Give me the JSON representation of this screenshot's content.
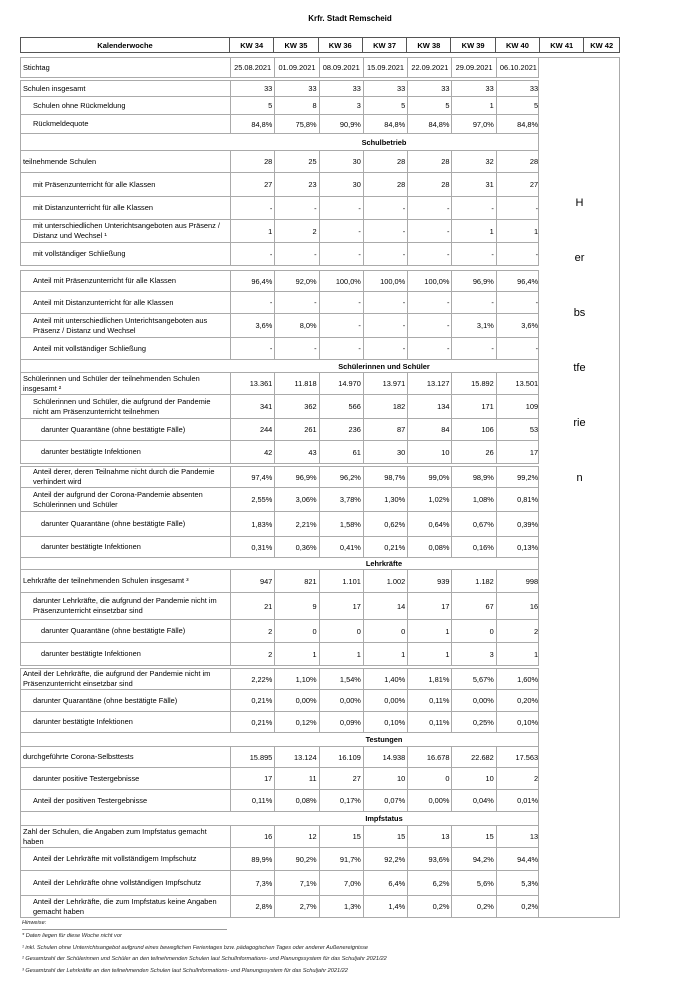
{
  "title": "Krfr. Stadt Remscheid",
  "header": {
    "label": "Kalenderwoche",
    "weeks": [
      "KW 34",
      "KW 35",
      "KW 36",
      "KW 37",
      "KW 38",
      "KW 39",
      "KW 40",
      "KW 41",
      "KW 42"
    ]
  },
  "holiday_text": "Herbstferien",
  "rows": [
    {
      "label": "Stichtag",
      "indent": 0,
      "values": [
        "25.08.2021",
        "01.09.2021",
        "08.09.2021",
        "15.09.2021",
        "22.09.2021",
        "29.09.2021",
        "06.10.2021"
      ]
    },
    {
      "label": "Schulen insgesamt",
      "indent": 0,
      "values": [
        "33",
        "33",
        "33",
        "33",
        "33",
        "33",
        "33"
      ]
    },
    {
      "label": "Schulen ohne Rückmeldung",
      "indent": 1,
      "values": [
        "5",
        "8",
        "3",
        "5",
        "5",
        "1",
        "5"
      ]
    },
    {
      "label": "Rückmeldequote",
      "indent": 1,
      "values": [
        "84,8%",
        "75,8%",
        "90,9%",
        "84,8%",
        "84,8%",
        "97,0%",
        "84,8%"
      ]
    },
    {
      "heading": "Schulbetrieb"
    },
    {
      "label": "teilnehmende Schulen",
      "indent": 0,
      "values": [
        "28",
        "25",
        "30",
        "28",
        "28",
        "32",
        "28"
      ]
    },
    {
      "label": "mit Präsenzunterricht für alle Klassen",
      "indent": 1,
      "values": [
        "27",
        "23",
        "30",
        "28",
        "28",
        "31",
        "27"
      ]
    },
    {
      "label": "mit Distanzunterricht für alle Klassen",
      "indent": 1,
      "values": [
        "-",
        "-",
        "-",
        "-",
        "-",
        "-",
        "-"
      ]
    },
    {
      "label": "mit unterschiedlichen Unterichtsangeboten aus Präsenz / Distanz und Wechsel ¹",
      "indent": 1,
      "values": [
        "1",
        "2",
        "-",
        "-",
        "-",
        "1",
        "1"
      ]
    },
    {
      "label": "mit vollständiger Schließung",
      "indent": 1,
      "values": [
        "-",
        "-",
        "-",
        "-",
        "-",
        "-",
        "-"
      ]
    },
    {
      "label": "Anteil mit Präsenzunterricht für alle Klassen",
      "indent": 1,
      "values": [
        "96,4%",
        "92,0%",
        "100,0%",
        "100,0%",
        "100,0%",
        "96,9%",
        "96,4%"
      ]
    },
    {
      "label": "Anteil mit Distanzunterricht für alle Klassen",
      "indent": 1,
      "values": [
        "-",
        "-",
        "-",
        "-",
        "-",
        "-",
        "-"
      ]
    },
    {
      "label": "Anteil mit unterschiedlichen Unterichtsangeboten aus Präsenz / Distanz und Wechsel",
      "indent": 1,
      "values": [
        "3,6%",
        "8,0%",
        "-",
        "-",
        "-",
        "3,1%",
        "3,6%"
      ]
    },
    {
      "label": "Anteil mit vollständiger Schließung",
      "indent": 1,
      "values": [
        "-",
        "-",
        "-",
        "-",
        "-",
        "-",
        "-"
      ]
    },
    {
      "heading": "Schülerinnen und Schüler"
    },
    {
      "label": "Schülerinnen und Schüler der teilnehmenden Schulen insgesamt ²",
      "indent": 0,
      "values": [
        "13.361",
        "11.818",
        "14.970",
        "13.971",
        "13.127",
        "15.892",
        "13.501"
      ]
    },
    {
      "label": "Schülerinnen und Schüler, die aufgrund der Pandemie nicht am Präsenzunterricht teilnehmen",
      "indent": 1,
      "values": [
        "341",
        "362",
        "566",
        "182",
        "134",
        "171",
        "109"
      ]
    },
    {
      "label": "darunter Quarantäne (ohne bestätigte Fälle)",
      "indent": 2,
      "values": [
        "244",
        "261",
        "236",
        "87",
        "84",
        "106",
        "53"
      ]
    },
    {
      "label": "darunter bestätigte Infektionen",
      "indent": 2,
      "values": [
        "42",
        "43",
        "61",
        "30",
        "10",
        "26",
        "17"
      ]
    },
    {
      "label": "Anteil derer, deren Teilnahme nicht durch die Pandemie verhindert wird",
      "indent": 1,
      "values": [
        "97,4%",
        "96,9%",
        "96,2%",
        "98,7%",
        "99,0%",
        "98,9%",
        "99,2%"
      ]
    },
    {
      "label": "Anteil der aufgrund der Corona-Pandemie absenten Schülerinnen und Schüler",
      "indent": 1,
      "values": [
        "2,55%",
        "3,06%",
        "3,78%",
        "1,30%",
        "1,02%",
        "1,08%",
        "0,81%"
      ]
    },
    {
      "label": "darunter Quarantäne (ohne bestätigte Fälle)",
      "indent": 2,
      "values": [
        "1,83%",
        "2,21%",
        "1,58%",
        "0,62%",
        "0,64%",
        "0,67%",
        "0,39%"
      ]
    },
    {
      "label": "darunter bestätigte Infektionen",
      "indent": 2,
      "values": [
        "0,31%",
        "0,36%",
        "0,41%",
        "0,21%",
        "0,08%",
        "0,16%",
        "0,13%"
      ]
    },
    {
      "heading": "Lehrkräfte"
    },
    {
      "label": "Lehrkräfte der teilnehmenden Schulen insgesamt ³",
      "indent": 0,
      "values": [
        "947",
        "821",
        "1.101",
        "1.002",
        "939",
        "1.182",
        "998"
      ]
    },
    {
      "label": "darunter Lehrkräfte, die aufgrund der Pandemie nicht im Präsenzunterricht einsetzbar sind",
      "indent": 1,
      "values": [
        "21",
        "9",
        "17",
        "14",
        "17",
        "67",
        "16"
      ]
    },
    {
      "label": "darunter Quarantäne (ohne bestätigte Fälle)",
      "indent": 2,
      "values": [
        "2",
        "0",
        "0",
        "0",
        "1",
        "0",
        "2"
      ]
    },
    {
      "label": "darunter bestätigte Infektionen",
      "indent": 2,
      "values": [
        "2",
        "1",
        "1",
        "1",
        "1",
        "3",
        "1"
      ]
    },
    {
      "label": "Anteil der Lehrkräfte, die aufgrund der Pandemie nicht im Präsenzunterricht einsetzbar sind",
      "indent": 0,
      "values": [
        "2,22%",
        "1,10%",
        "1,54%",
        "1,40%",
        "1,81%",
        "5,67%",
        "1,60%"
      ]
    },
    {
      "label": "darunter Quarantäne (ohne bestätigte Fälle)",
      "indent": 1,
      "values": [
        "0,21%",
        "0,00%",
        "0,00%",
        "0,00%",
        "0,11%",
        "0,00%",
        "0,20%"
      ]
    },
    {
      "label": "darunter bestätigte Infektionen",
      "indent": 1,
      "values": [
        "0,21%",
        "0,12%",
        "0,09%",
        "0,10%",
        "0,11%",
        "0,25%",
        "0,10%"
      ]
    },
    {
      "heading": "Testungen"
    },
    {
      "label": "durchgeführte Corona-Selbsttests",
      "indent": 0,
      "values": [
        "15.895",
        "13.124",
        "16.109",
        "14.938",
        "16.678",
        "22.682",
        "17.563"
      ]
    },
    {
      "label": "darunter positive Testergebnisse",
      "indent": 1,
      "values": [
        "17",
        "11",
        "27",
        "10",
        "0",
        "10",
        "2"
      ]
    },
    {
      "label": "Anteil der positiven Testergebnisse",
      "indent": 1,
      "values": [
        "0,11%",
        "0,08%",
        "0,17%",
        "0,07%",
        "0,00%",
        "0,04%",
        "0,01%"
      ]
    },
    {
      "heading": "Impfstatus"
    },
    {
      "label": "Zahl der Schulen, die Angaben zum Impfstatus gemacht haben",
      "indent": 0,
      "values": [
        "16",
        "12",
        "15",
        "15",
        "13",
        "15",
        "13"
      ]
    },
    {
      "label": "Anteil der Lehrkräfte mit vollständigem Impfschutz",
      "indent": 1,
      "values": [
        "89,9%",
        "90,2%",
        "91,7%",
        "92,2%",
        "93,6%",
        "94,2%",
        "94,4%"
      ]
    },
    {
      "label": "Anteil der Lehrkräfte ohne vollständigen Impfschutz",
      "indent": 1,
      "values": [
        "7,3%",
        "7,1%",
        "7,0%",
        "6,4%",
        "6,2%",
        "5,6%",
        "5,3%"
      ]
    },
    {
      "label": "Anteil der Lehrkräfte, die zum Impfstatus keine Angaben gemacht haben",
      "indent": 1,
      "values": [
        "2,8%",
        "2,7%",
        "1,3%",
        "1,4%",
        "0,2%",
        "0,2%",
        "0,2%"
      ]
    }
  ],
  "notes": {
    "heading": "Hinweise:",
    "items": [
      "* Daten liegen für diese Woche nicht vor",
      "¹ inkl. Schulen ohne Unterrichtsangebot aufgrund eines beweglichen Ferientages bzw. pädagogischen Tages oder anderer Außenereignisse",
      "² Gesamtzahl der Schülerinnen und Schüler an den teilnehmenden Schulen laut SchulInformations- und Planungssystem für das Schuljahr 2021/22",
      "³ Gesamtzahl der Lehrkräfte an den teilnehmenden Schulen laut SchulInformations- und Planungssystem für das Schuljahr 2021/22"
    ]
  }
}
